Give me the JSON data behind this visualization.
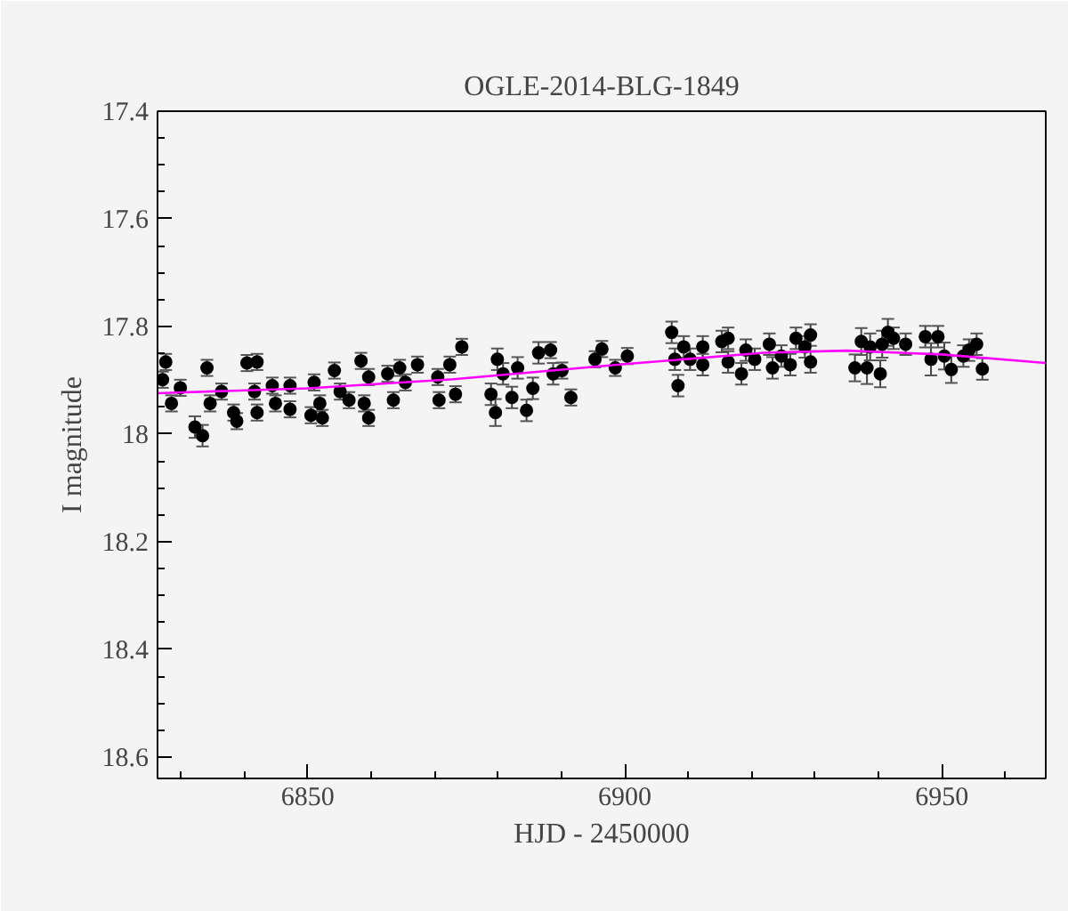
{
  "chart_data": {
    "type": "scatter",
    "title": "OGLE-2014-BLG-1849",
    "xlabel": "HJD - 2450000",
    "ylabel": "I magnitude",
    "xlim": [
      6826.3,
      6966.4
    ],
    "xticks": [
      6850,
      6900,
      6950
    ],
    "ylim": [
      18.64,
      17.4
    ],
    "yticks": [
      17.4,
      17.6,
      17.8,
      18,
      18.2,
      18.4,
      18.6
    ],
    "grid": false,
    "series": [
      {
        "color": "#000000",
        "marker": "circle",
        "x": [
          6827.6,
          6827.1,
          6828.5,
          6829.9,
          6832.2,
          6833.4,
          6834.1,
          6834.6,
          6836.4,
          6838.3,
          6838.8,
          6840.4,
          6842.0,
          6841.6,
          6842.0,
          6844.4,
          6844.9,
          6847.2,
          6847.2,
          6850.5,
          6851.0,
          6851.9,
          6852.3,
          6854.2,
          6855.1,
          6856.5,
          6858.4,
          6858.9,
          6859.6,
          6859.6,
          6862.6,
          6863.5,
          6864.5,
          6865.4,
          6867.3,
          6870.5,
          6870.7,
          6872.4,
          6873.3,
          6874.3,
          6879.9,
          6878.9,
          6879.6,
          6880.8,
          6882.2,
          6883.1,
          6884.5,
          6885.5,
          6886.4,
          6888.3,
          6888.7,
          6890.1,
          6891.5,
          6895.3,
          6896.4,
          6898.5,
          6900.4,
          6907.4,
          6907.9,
          6908.4,
          6909.3,
          6910.3,
          6912.3,
          6912.3,
          6915.3,
          6916.3,
          6916.3,
          6918.4,
          6919.1,
          6920.5,
          6922.8,
          6923.3,
          6924.7,
          6926.1,
          6927.0,
          6928.4,
          6929.3,
          6929.3,
          6936.3,
          6937.3,
          6938.2,
          6938.7,
          6940.3,
          6940.6,
          6941.5,
          6942.4,
          6944.3,
          6947.4,
          6948.3,
          6949.4,
          6950.4,
          6951.5,
          6953.4,
          6954.3,
          6955.5,
          6956.4
        ],
        "values": [
          17.866,
          17.899,
          17.943,
          17.914,
          17.987,
          18.003,
          17.877,
          17.943,
          17.921,
          17.96,
          17.976,
          17.868,
          17.866,
          17.921,
          17.96,
          17.91,
          17.943,
          17.91,
          17.954,
          17.965,
          17.904,
          17.943,
          17.97,
          17.882,
          17.921,
          17.937,
          17.864,
          17.943,
          17.97,
          17.894,
          17.888,
          17.937,
          17.877,
          17.904,
          17.871,
          17.894,
          17.937,
          17.871,
          17.926,
          17.838,
          17.861,
          17.926,
          17.96,
          17.888,
          17.932,
          17.877,
          17.956,
          17.915,
          17.849,
          17.844,
          17.888,
          17.882,
          17.932,
          17.861,
          17.842,
          17.877,
          17.855,
          17.811,
          17.861,
          17.91,
          17.838,
          17.861,
          17.838,
          17.871,
          17.828,
          17.822,
          17.866,
          17.888,
          17.844,
          17.861,
          17.833,
          17.877,
          17.855,
          17.871,
          17.822,
          17.838,
          17.816,
          17.866,
          17.877,
          17.828,
          17.877,
          17.838,
          17.888,
          17.833,
          17.811,
          17.822,
          17.833,
          17.819,
          17.861,
          17.819,
          17.855,
          17.88,
          17.855,
          17.844,
          17.833,
          17.879
        ],
        "errors": [
          0.015,
          0.015,
          0.015,
          0.015,
          0.02,
          0.02,
          0.015,
          0.015,
          0.015,
          0.015,
          0.015,
          0.015,
          0.015,
          0.015,
          0.015,
          0.015,
          0.015,
          0.015,
          0.015,
          0.015,
          0.015,
          0.015,
          0.015,
          0.015,
          0.015,
          0.015,
          0.015,
          0.015,
          0.015,
          0.015,
          0.015,
          0.015,
          0.015,
          0.015,
          0.015,
          0.015,
          0.015,
          0.015,
          0.015,
          0.015,
          0.02,
          0.02,
          0.025,
          0.02,
          0.02,
          0.02,
          0.02,
          0.02,
          0.02,
          0.015,
          0.02,
          0.015,
          0.015,
          0.015,
          0.015,
          0.015,
          0.015,
          0.02,
          0.02,
          0.02,
          0.02,
          0.02,
          0.02,
          0.02,
          0.02,
          0.02,
          0.02,
          0.02,
          0.02,
          0.02,
          0.02,
          0.02,
          0.02,
          0.02,
          0.02,
          0.02,
          0.02,
          0.02,
          0.025,
          0.025,
          0.03,
          0.025,
          0.025,
          0.025,
          0.025,
          0.02,
          0.02,
          0.02,
          0.03,
          0.02,
          0.025,
          0.025,
          0.02,
          0.02,
          0.02,
          0.02
        ]
      },
      {
        "type": "line",
        "color": "#ff00ff",
        "line_style": "solid",
        "marker": "none",
        "x": [
          6826.3,
          6850,
          6873,
          6900,
          6922,
          6935,
          6950,
          6966.4
        ],
        "values": [
          17.924,
          17.915,
          17.898,
          17.87,
          17.849,
          17.845,
          17.852,
          17.868
        ]
      }
    ]
  }
}
